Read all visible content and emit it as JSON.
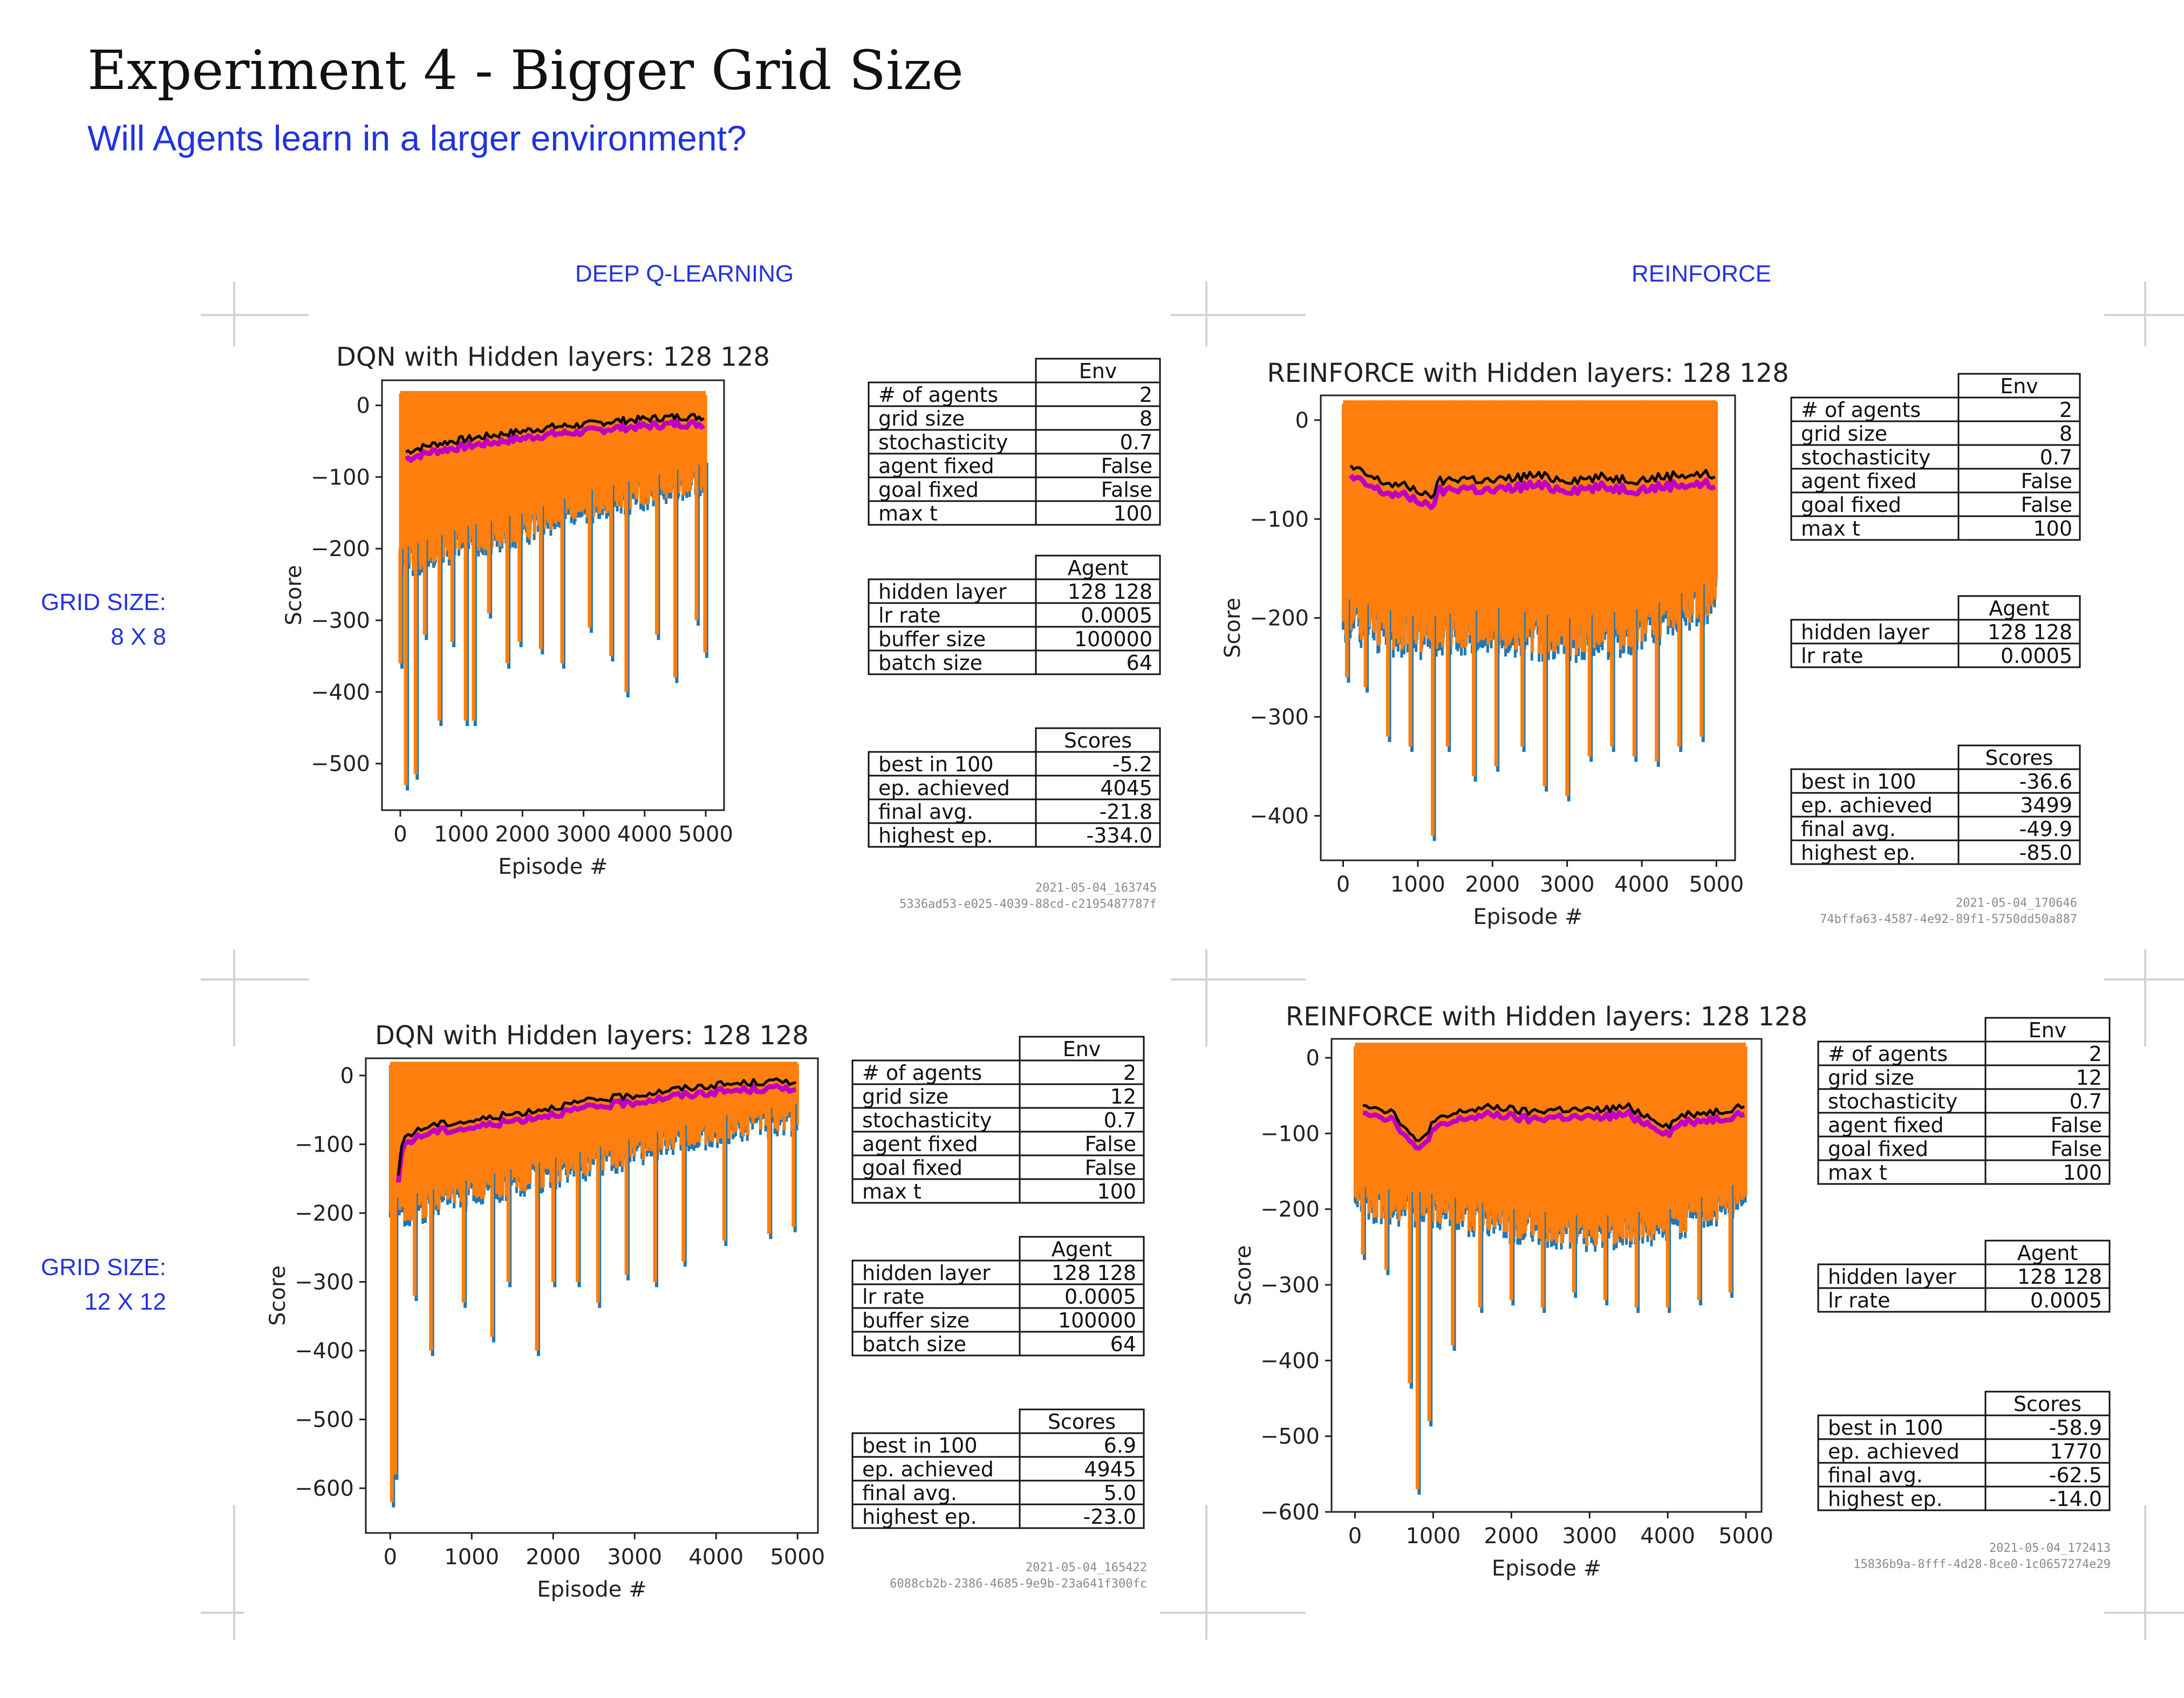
{
  "title": "Experiment 4 - Bigger Grid Size",
  "subtitle": "Will Agents learn in a larger environment?",
  "columns": [
    "DEEP Q-LEARNING",
    "REINFORCE"
  ],
  "rows": [
    {
      "label_top": "GRID SIZE:",
      "label_bottom": "8 X 8"
    },
    {
      "label_top": "GRID SIZE:",
      "label_bottom": "12 X 12"
    }
  ],
  "colors": {
    "raw_blue": "#1f77b4",
    "raw_orange": "#ff7f0e",
    "avg_black": "#000000",
    "avg_magenta": "#c000c0",
    "accent_blue": "#2233dd"
  },
  "chart_data": [
    {
      "type": "line",
      "title": "DQN with Hidden layers: 128 128",
      "xlabel": "Episode #",
      "ylabel": "Score",
      "xlim": [
        -300,
        5300
      ],
      "ylim": [
        -565,
        35
      ],
      "xticks": [
        0,
        1000,
        2000,
        3000,
        4000,
        5000
      ],
      "yticks": [
        0,
        -100,
        -200,
        -300,
        -400,
        -500
      ],
      "raw_top": 20,
      "raw_floor": [
        [
          0,
          -200
        ],
        [
          1000,
          -170
        ],
        [
          2000,
          -150
        ],
        [
          3000,
          -120
        ],
        [
          4000,
          -100
        ],
        [
          5000,
          -80
        ]
      ],
      "dips": [
        [
          0,
          -360
        ],
        [
          90,
          -530
        ],
        [
          250,
          -515
        ],
        [
          400,
          -320
        ],
        [
          640,
          -440
        ],
        [
          850,
          -330
        ],
        [
          1070,
          -440
        ],
        [
          1200,
          -440
        ],
        [
          1450,
          -290
        ],
        [
          1750,
          -360
        ],
        [
          1950,
          -330
        ],
        [
          2300,
          -340
        ],
        [
          2650,
          -360
        ],
        [
          3100,
          -310
        ],
        [
          3450,
          -350
        ],
        [
          3700,
          -400
        ],
        [
          4200,
          -320
        ],
        [
          4500,
          -380
        ],
        [
          4850,
          -300
        ],
        [
          4990,
          -345
        ]
      ],
      "avg": [
        [
          90,
          -65
        ],
        [
          500,
          -55
        ],
        [
          1000,
          -48
        ],
        [
          1500,
          -42
        ],
        [
          2000,
          -36
        ],
        [
          2500,
          -30
        ],
        [
          3000,
          -27
        ],
        [
          3500,
          -22
        ],
        [
          4000,
          -19
        ],
        [
          4500,
          -16
        ],
        [
          5000,
          -16
        ]
      ],
      "tables": {
        "env": {
          "header": "Env",
          "rows": [
            [
              "# of agents",
              "2"
            ],
            [
              "grid size",
              "8"
            ],
            [
              "stochasticity",
              "0.7"
            ],
            [
              "agent fixed",
              "False"
            ],
            [
              "goal fixed",
              "False"
            ],
            [
              "max t",
              "100"
            ]
          ]
        },
        "agent": {
          "header": "Agent",
          "rows": [
            [
              "hidden layer",
              "128 128"
            ],
            [
              "lr rate",
              "0.0005"
            ],
            [
              "buffer size",
              "100000"
            ],
            [
              "batch size",
              "64"
            ]
          ]
        },
        "scores": {
          "header": "Scores",
          "rows": [
            [
              "best in 100",
              "-5.2"
            ],
            [
              "ep. achieved",
              "4045"
            ],
            [
              "final avg.",
              "-21.8"
            ],
            [
              "highest ep.",
              "-334.0"
            ]
          ]
        }
      },
      "stamp": [
        "2021-05-04_163745",
        "5336ad53-e025-4039-88cd-c2195487787f"
      ]
    },
    {
      "type": "line",
      "title": "REINFORCE with Hidden layers: 128 128",
      "xlabel": "Episode #",
      "ylabel": "Score",
      "xlim": [
        -300,
        5250
      ],
      "ylim": [
        -445,
        25
      ],
      "xticks": [
        0,
        1000,
        2000,
        3000,
        4000,
        5000
      ],
      "yticks": [
        0,
        -100,
        -200,
        -300,
        -400
      ],
      "raw_top": 20,
      "raw_floor": [
        [
          0,
          -180
        ],
        [
          1000,
          -200
        ],
        [
          2000,
          -190
        ],
        [
          3000,
          -200
        ],
        [
          4000,
          -190
        ],
        [
          5000,
          -160
        ]
      ],
      "dips": [
        [
          50,
          -260
        ],
        [
          300,
          -270
        ],
        [
          600,
          -320
        ],
        [
          900,
          -330
        ],
        [
          1200,
          -420
        ],
        [
          1400,
          -330
        ],
        [
          1750,
          -360
        ],
        [
          2050,
          -350
        ],
        [
          2400,
          -330
        ],
        [
          2700,
          -370
        ],
        [
          3000,
          -380
        ],
        [
          3300,
          -340
        ],
        [
          3600,
          -330
        ],
        [
          3900,
          -340
        ],
        [
          4200,
          -345
        ],
        [
          4500,
          -330
        ],
        [
          4800,
          -320
        ]
      ],
      "avg": [
        [
          100,
          -48
        ],
        [
          500,
          -62
        ],
        [
          1000,
          -70
        ],
        [
          1150,
          -80
        ],
        [
          1300,
          -62
        ],
        [
          1600,
          -58
        ],
        [
          2000,
          -62
        ],
        [
          2500,
          -56
        ],
        [
          3000,
          -60
        ],
        [
          3500,
          -58
        ],
        [
          4000,
          -60
        ],
        [
          4500,
          -55
        ],
        [
          5000,
          -55
        ]
      ],
      "tables": {
        "env": {
          "header": "Env",
          "rows": [
            [
              "# of agents",
              "2"
            ],
            [
              "grid size",
              "8"
            ],
            [
              "stochasticity",
              "0.7"
            ],
            [
              "agent fixed",
              "False"
            ],
            [
              "goal fixed",
              "False"
            ],
            [
              "max t",
              "100"
            ]
          ]
        },
        "agent": {
          "header": "Agent",
          "rows": [
            [
              "hidden layer",
              "128 128"
            ],
            [
              "lr rate",
              "0.0005"
            ]
          ]
        },
        "scores": {
          "header": "Scores",
          "rows": [
            [
              "best in 100",
              "-36.6"
            ],
            [
              "ep. achieved",
              "3499"
            ],
            [
              "final avg.",
              "-49.9"
            ],
            [
              "highest ep.",
              "-85.0"
            ]
          ]
        }
      },
      "stamp": [
        "2021-05-04_170646",
        "74bffa63-4587-4e92-89f1-5750dd50a887"
      ]
    },
    {
      "type": "line",
      "title": "DQN with Hidden layers: 128 128",
      "xlabel": "Episode #",
      "ylabel": "Score",
      "xlim": [
        -300,
        5250
      ],
      "ylim": [
        -665,
        25
      ],
      "xticks": [
        0,
        1000,
        2000,
        3000,
        4000,
        5000
      ],
      "yticks": [
        0,
        -100,
        -200,
        -300,
        -400,
        -500,
        -600
      ],
      "raw_top": 20,
      "raw_floor": [
        [
          0,
          -180
        ],
        [
          1000,
          -150
        ],
        [
          2000,
          -120
        ],
        [
          3000,
          -90
        ],
        [
          4000,
          -60
        ],
        [
          5000,
          -40
        ]
      ],
      "dips": [
        [
          20,
          -620
        ],
        [
          60,
          -580
        ],
        [
          300,
          -320
        ],
        [
          500,
          -400
        ],
        [
          900,
          -330
        ],
        [
          1250,
          -380
        ],
        [
          1450,
          -300
        ],
        [
          1800,
          -400
        ],
        [
          2000,
          -300
        ],
        [
          2300,
          -300
        ],
        [
          2550,
          -330
        ],
        [
          2900,
          -290
        ],
        [
          3250,
          -300
        ],
        [
          3600,
          -270
        ],
        [
          4100,
          -240
        ],
        [
          4650,
          -230
        ],
        [
          4950,
          -220
        ]
      ],
      "avg": [
        [
          100,
          -150
        ],
        [
          150,
          -90
        ],
        [
          500,
          -72
        ],
        [
          1000,
          -66
        ],
        [
          1500,
          -56
        ],
        [
          2000,
          -46
        ],
        [
          2500,
          -36
        ],
        [
          3000,
          -29
        ],
        [
          3500,
          -20
        ],
        [
          4000,
          -14
        ],
        [
          4500,
          -10
        ],
        [
          5000,
          -8
        ]
      ],
      "tables": {
        "env": {
          "header": "Env",
          "rows": [
            [
              "# of agents",
              "2"
            ],
            [
              "grid size",
              "12"
            ],
            [
              "stochasticity",
              "0.7"
            ],
            [
              "agent fixed",
              "False"
            ],
            [
              "goal fixed",
              "False"
            ],
            [
              "max t",
              "100"
            ]
          ]
        },
        "agent": {
          "header": "Agent",
          "rows": [
            [
              "hidden layer",
              "128 128"
            ],
            [
              "lr rate",
              "0.0005"
            ],
            [
              "buffer size",
              "100000"
            ],
            [
              "batch size",
              "64"
            ]
          ]
        },
        "scores": {
          "header": "Scores",
          "rows": [
            [
              "best in 100",
              "6.9"
            ],
            [
              "ep. achieved",
              "4945"
            ],
            [
              "final avg.",
              "5.0"
            ],
            [
              "highest ep.",
              "-23.0"
            ]
          ]
        }
      },
      "stamp": [
        "2021-05-04_165422",
        "6088cb2b-2386-4685-9e9b-23a641f300fc"
      ]
    },
    {
      "type": "line",
      "title": "REINFORCE with Hidden layers: 128 128",
      "xlabel": "Episode #",
      "ylabel": "Score",
      "xlim": [
        -300,
        5200
      ],
      "ylim": [
        -600,
        25
      ],
      "xticks": [
        0,
        1000,
        2000,
        3000,
        4000,
        5000
      ],
      "yticks": [
        0,
        -100,
        -200,
        -300,
        -400,
        -500,
        -600
      ],
      "raw_top": 20,
      "raw_floor": [
        [
          0,
          -170
        ],
        [
          1000,
          -180
        ],
        [
          2000,
          -200
        ],
        [
          3000,
          -210
        ],
        [
          4000,
          -200
        ],
        [
          5000,
          -160
        ]
      ],
      "dips": [
        [
          100,
          -260
        ],
        [
          400,
          -280
        ],
        [
          700,
          -430
        ],
        [
          800,
          -570
        ],
        [
          950,
          -480
        ],
        [
          1250,
          -380
        ],
        [
          1600,
          -330
        ],
        [
          2000,
          -320
        ],
        [
          2400,
          -330
        ],
        [
          2800,
          -310
        ],
        [
          3200,
          -320
        ],
        [
          3600,
          -330
        ],
        [
          4000,
          -330
        ],
        [
          4400,
          -320
        ],
        [
          4800,
          -310
        ]
      ],
      "avg": [
        [
          100,
          -60
        ],
        [
          500,
          -72
        ],
        [
          800,
          -115
        ],
        [
          1000,
          -85
        ],
        [
          1400,
          -70
        ],
        [
          1800,
          -65
        ],
        [
          2200,
          -72
        ],
        [
          2600,
          -68
        ],
        [
          3000,
          -70
        ],
        [
          3500,
          -65
        ],
        [
          4000,
          -90
        ],
        [
          4200,
          -75
        ],
        [
          4700,
          -70
        ],
        [
          5000,
          -62
        ]
      ],
      "tables": {
        "env": {
          "header": "Env",
          "rows": [
            [
              "# of agents",
              "2"
            ],
            [
              "grid size",
              "12"
            ],
            [
              "stochasticity",
              "0.7"
            ],
            [
              "agent fixed",
              "False"
            ],
            [
              "goal fixed",
              "False"
            ],
            [
              "max t",
              "100"
            ]
          ]
        },
        "agent": {
          "header": "Agent",
          "rows": [
            [
              "hidden layer",
              "128 128"
            ],
            [
              "lr rate",
              "0.0005"
            ]
          ]
        },
        "scores": {
          "header": "Scores",
          "rows": [
            [
              "best in 100",
              "-58.9"
            ],
            [
              "ep. achieved",
              "1770"
            ],
            [
              "final avg.",
              "-62.5"
            ],
            [
              "highest ep.",
              "-14.0"
            ]
          ]
        }
      },
      "stamp": [
        "2021-05-04_172413",
        "15836b9a-8fff-4d28-8ce0-1c0657274e29"
      ]
    }
  ]
}
